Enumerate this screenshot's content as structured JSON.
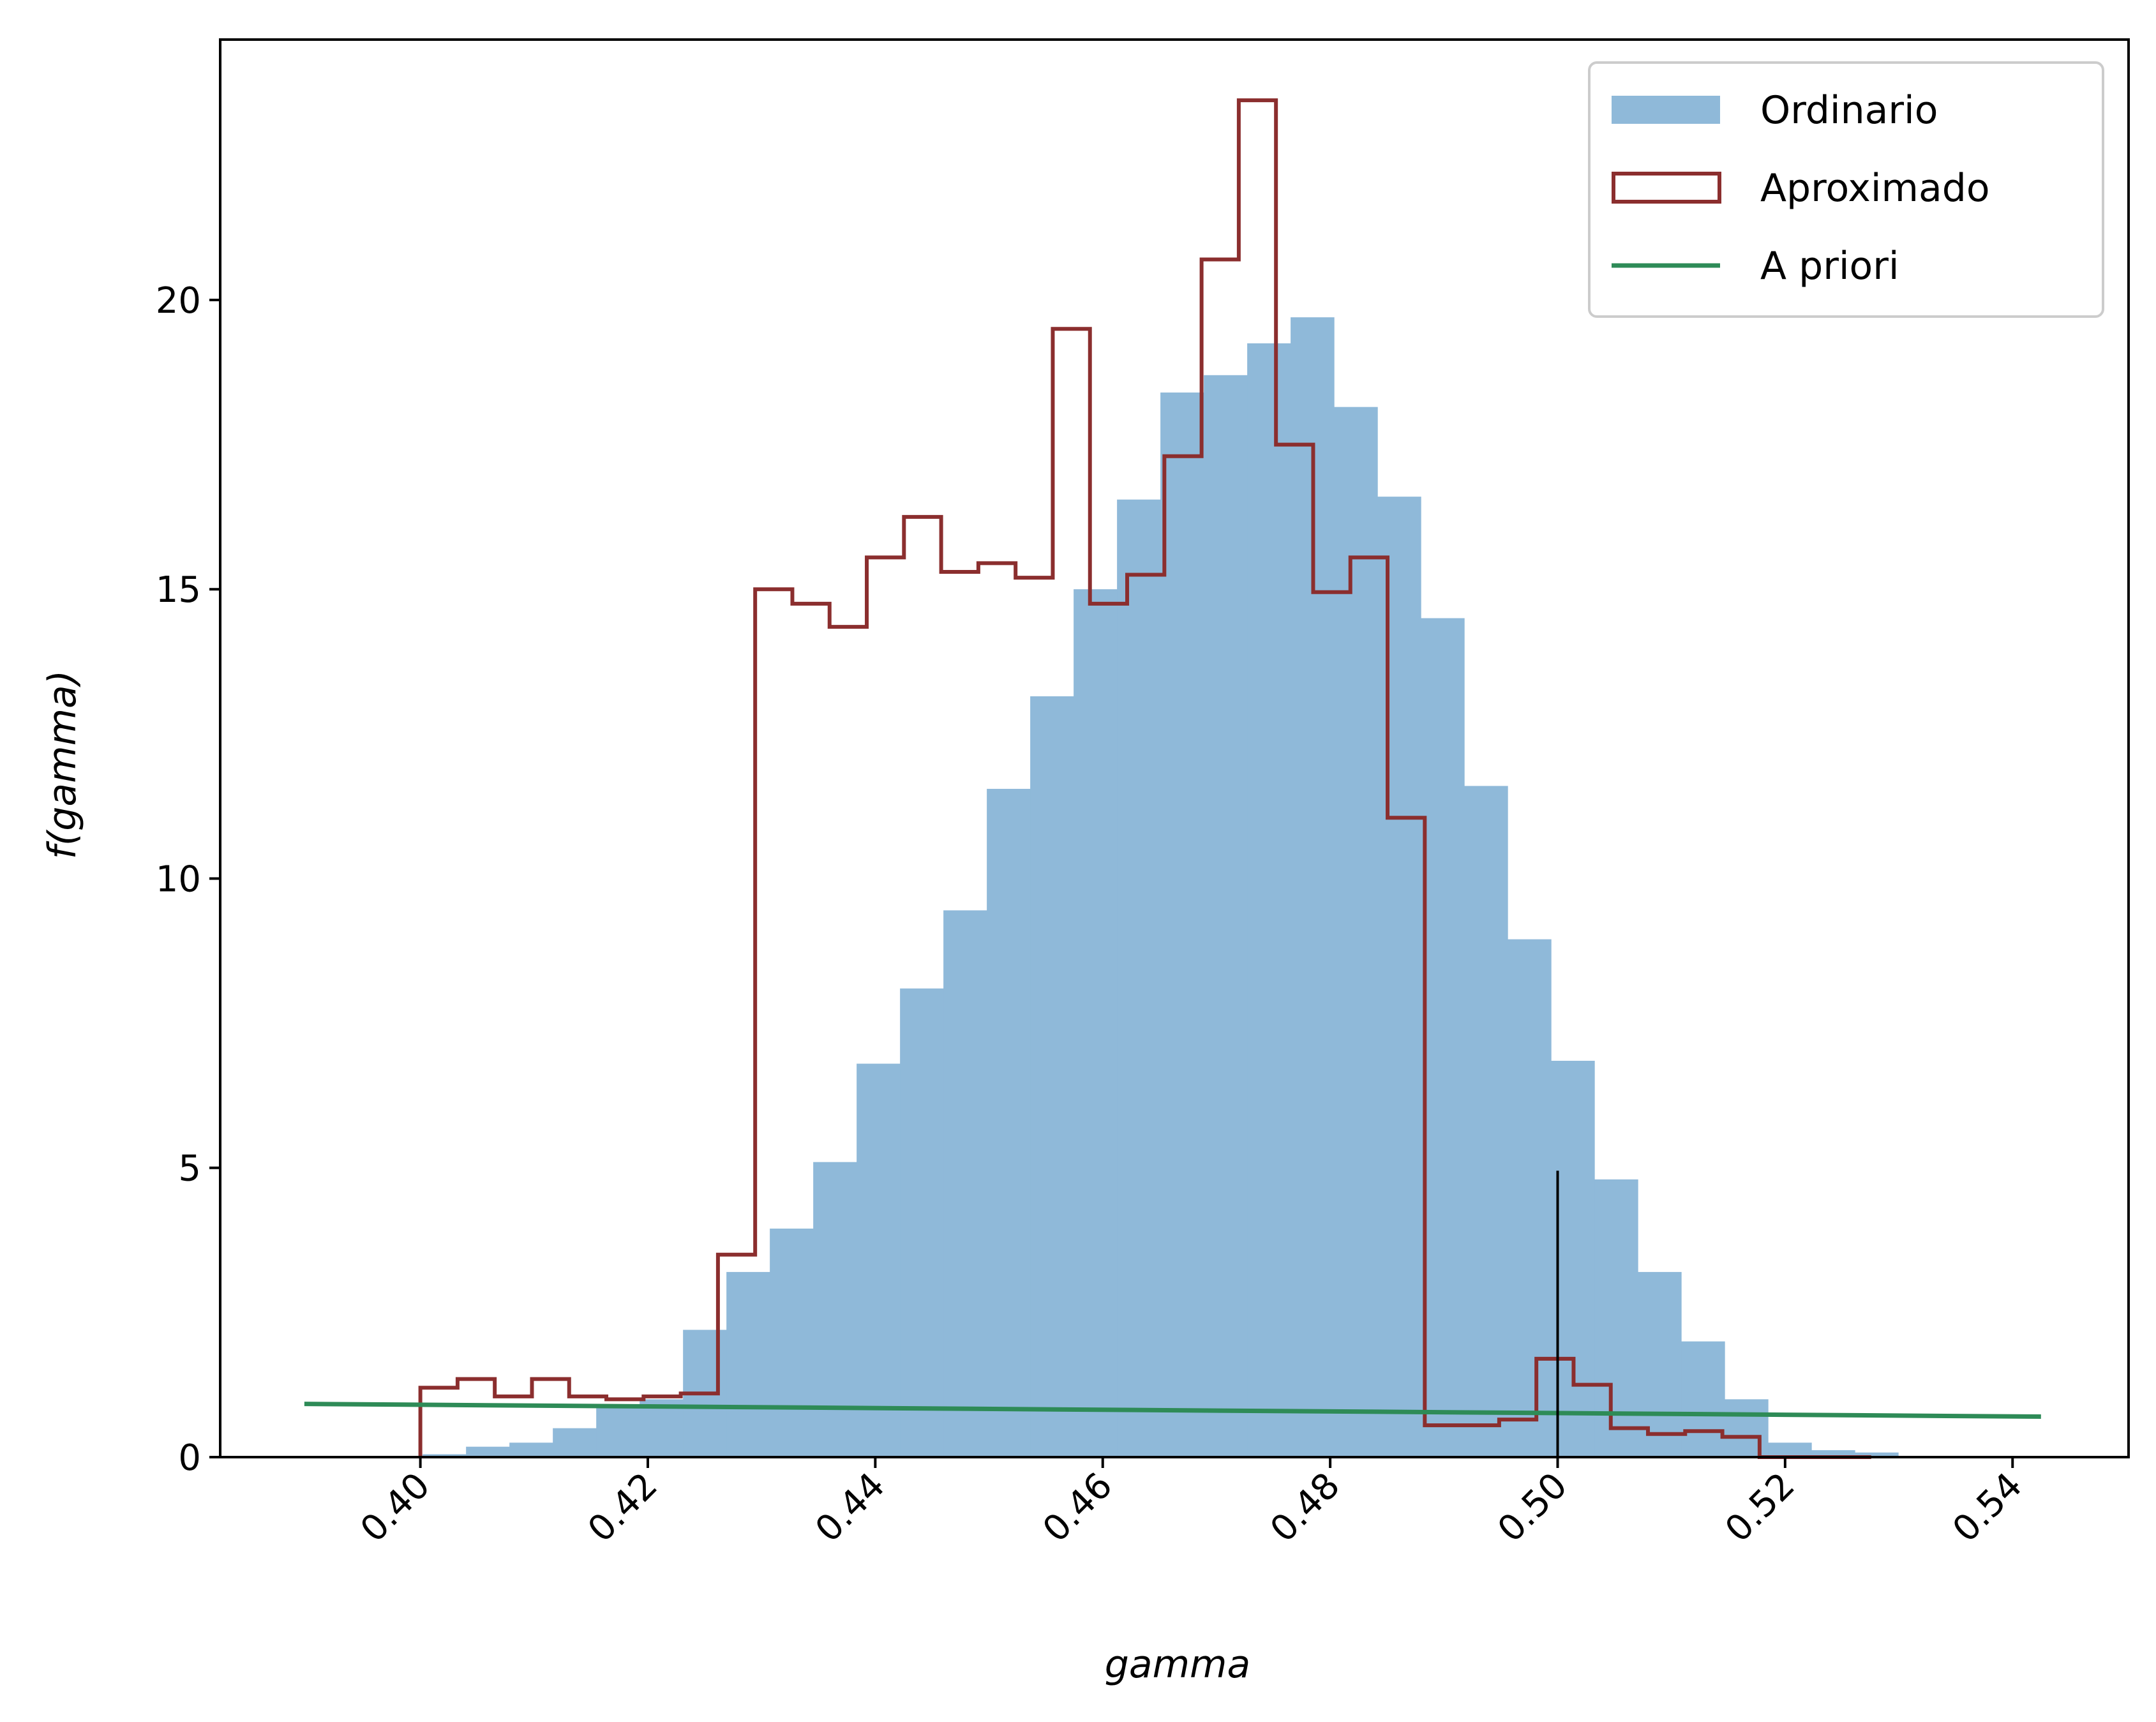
{
  "chart_data": {
    "type": "histogram",
    "xlabel": "gamma",
    "ylabel": "f(gamma)",
    "xlim": [
      0.3824,
      0.5502
    ],
    "ylim": [
      0,
      24.5
    ],
    "x_ticks": [
      {
        "value": 0.4,
        "label": "0.40"
      },
      {
        "value": 0.42,
        "label": "0.42"
      },
      {
        "value": 0.44,
        "label": "0.44"
      },
      {
        "value": 0.46,
        "label": "0.46"
      },
      {
        "value": 0.48,
        "label": "0.48"
      },
      {
        "value": 0.5,
        "label": "0.50"
      },
      {
        "value": 0.52,
        "label": "0.52"
      },
      {
        "value": 0.54,
        "label": "0.54"
      }
    ],
    "y_ticks": [
      {
        "value": 0,
        "label": "0"
      },
      {
        "value": 5,
        "label": "5"
      },
      {
        "value": 10,
        "label": "10"
      },
      {
        "value": 15,
        "label": "15"
      },
      {
        "value": 20,
        "label": "20"
      }
    ],
    "legend": {
      "position": "top-right",
      "entries": [
        {
          "label": "Ordinario",
          "kind": "patch",
          "color": "#8fb9d9"
        },
        {
          "label": "Aproximado",
          "kind": "step",
          "color": "#8b2e2e"
        },
        {
          "label": "A priori",
          "kind": "line",
          "color": "#2e8b57"
        }
      ]
    },
    "series": [
      {
        "name": "Ordinario",
        "type": "histogram-filled",
        "color": "#8fb9d9",
        "bin_start": 0.4002,
        "bin_width": 0.003816,
        "heights": [
          0.05,
          0.18,
          0.25,
          0.5,
          0.9,
          1.0,
          2.2,
          3.2,
          3.95,
          5.1,
          6.8,
          8.1,
          9.45,
          11.55,
          13.15,
          15.0,
          16.55,
          18.4,
          18.7,
          19.25,
          19.7,
          18.15,
          16.6,
          14.5,
          11.6,
          8.95,
          6.85,
          4.8,
          3.2,
          2.0,
          1.0,
          0.25,
          0.12,
          0.08
        ]
      },
      {
        "name": "Aproximado",
        "type": "histogram-step",
        "color": "#8b2e2e",
        "bin_start": 0.4,
        "bin_width": 0.003271,
        "heights": [
          1.2,
          1.35,
          1.05,
          1.35,
          1.05,
          1.0,
          1.05,
          1.1,
          3.5,
          15.0,
          14.75,
          14.35,
          15.55,
          16.25,
          15.3,
          15.45,
          15.2,
          19.5,
          14.75,
          15.25,
          17.3,
          20.7,
          23.45,
          17.5,
          14.95,
          15.55,
          11.05,
          0.55,
          0.55,
          0.65,
          1.7,
          1.25,
          0.5,
          0.4,
          0.45,
          0.35,
          0.0,
          0.0,
          0.0
        ]
      },
      {
        "name": "A priori",
        "type": "line",
        "color": "#2e8b57",
        "x": [
          0.3898,
          0.5425
        ],
        "y": [
          0.92,
          0.7
        ]
      }
    ],
    "vline": {
      "x": 0.5,
      "y_top": 4.95,
      "color": "#000000"
    }
  }
}
